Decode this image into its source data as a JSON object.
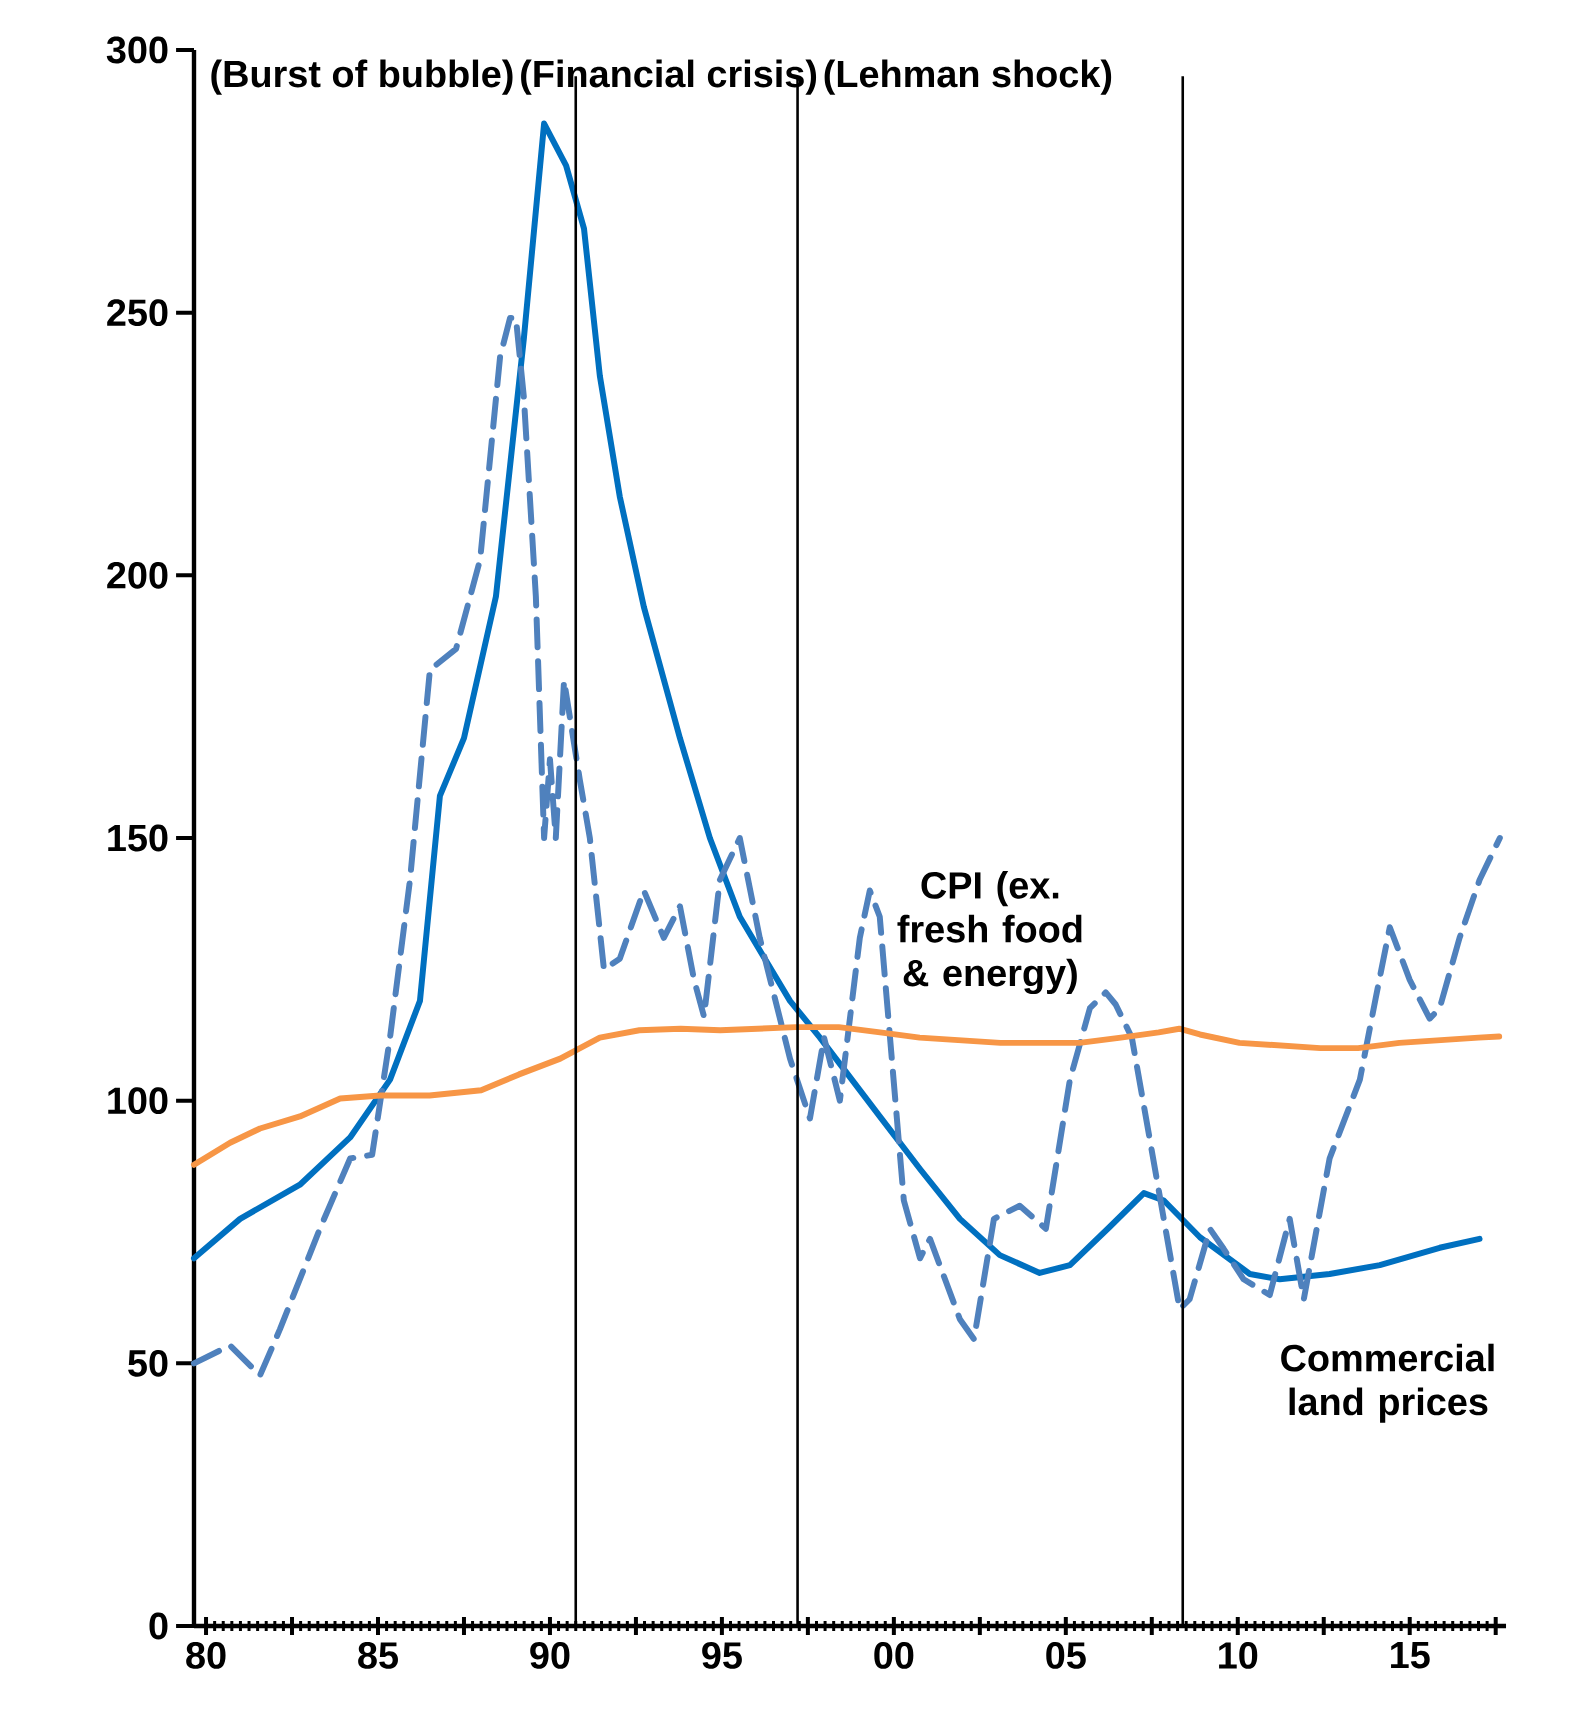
{
  "chart_data": {
    "type": "line",
    "ylim": [
      0,
      300
    ],
    "yticks": [
      0,
      50,
      100,
      150,
      200,
      250,
      300
    ],
    "xlim": [
      1979.65,
      2017.8
    ],
    "xticks": [
      {
        "value": 1980,
        "label": "80"
      },
      {
        "value": 1982.5,
        "label": null
      },
      {
        "value": 1985,
        "label": "85"
      },
      {
        "value": 1987.5,
        "label": null
      },
      {
        "value": 1990,
        "label": "90"
      },
      {
        "value": 1992.5,
        "label": null
      },
      {
        "value": 1995,
        "label": "95"
      },
      {
        "value": 1997.5,
        "label": null
      },
      {
        "value": 2000,
        "label": "00"
      },
      {
        "value": 2002.5,
        "label": null
      },
      {
        "value": 2005,
        "label": "05"
      },
      {
        "value": 2007.5,
        "label": null
      },
      {
        "value": 2010,
        "label": "10"
      },
      {
        "value": 2012.5,
        "label": null
      },
      {
        "value": 2015,
        "label": "15"
      },
      {
        "value": 2017.5,
        "label": null
      }
    ],
    "series": [
      {
        "name": "Commercial land prices",
        "color": "#0070c0",
        "line_style": "solid",
        "x": [
          1979.65,
          1980.99,
          1982.73,
          1984.19,
          1985.35,
          1986.22,
          1986.8,
          1987.5,
          1988.43,
          1989.24,
          1989.83,
          1990.47,
          1990.99,
          1991.45,
          1992.03,
          1992.73,
          1993.78,
          1994.65,
          1995.52,
          1996.98,
          1997.85,
          1999.59,
          2000.76,
          2001.92,
          2003.08,
          2004.24,
          2005.12,
          2006.28,
          2007.27,
          2007.85,
          2008.9,
          2010.35,
          2011.22,
          2012.67,
          2014.13,
          2015.87,
          2017.03
        ],
        "values": [
          70,
          77.5,
          84,
          93,
          104,
          119,
          158,
          169,
          196,
          245,
          286,
          278,
          266,
          238,
          215,
          194,
          169,
          150,
          135,
          119,
          112,
          97,
          87,
          77.5,
          70.6,
          67.2,
          68.7,
          76,
          82.4,
          81,
          74,
          67,
          66,
          67,
          68.7,
          72,
          73.7
        ]
      },
      {
        "color": "#4f81bd",
        "line_style": "dashed",
        "x": [
          1979.65,
          1980.7,
          1981.57,
          1982.15,
          1983.31,
          1984.19,
          1984.83,
          1985.35,
          1985.93,
          1986.51,
          1987.27,
          1987.97,
          1988.55,
          1988.84,
          1989.01,
          1989.24,
          1989.59,
          1989.83,
          1990,
          1990.17,
          1990.41,
          1990.87,
          1991.16,
          1991.57,
          1992.03,
          1992.73,
          1993.31,
          1993.78,
          1994.19,
          1994.48,
          1994.94,
          1995.52,
          1996.1,
          1996.98,
          1997.56,
          1997.97,
          1998.43,
          1999.01,
          1999.3,
          1999.59,
          2000.29,
          2000.76,
          2001.05,
          2001.92,
          2002.33,
          2002.91,
          2003.66,
          2004.42,
          2005.12,
          2005.7,
          2006.16,
          2006.45,
          2006.92,
          2007.44,
          2008.31,
          2008.6,
          2009.19,
          2009.59,
          2010.17,
          2010.93,
          2011.51,
          2011.92,
          2012.67,
          2013.55,
          2014.01,
          2014.42,
          2015,
          2015.58,
          2015.87,
          2016.45,
          2017.03,
          2017.62
        ],
        "values": [
          50,
          53.4,
          47.7,
          56.5,
          75.6,
          89,
          89.7,
          112,
          142,
          182,
          186,
          203,
          241.6,
          249,
          249,
          234,
          196,
          150,
          165,
          150,
          180,
          161,
          150,
          125,
          127,
          140,
          131,
          137,
          123,
          116,
          142,
          150,
          131,
          108,
          96.6,
          112,
          100,
          131,
          140,
          135,
          81,
          70,
          73.7,
          58.4,
          54.6,
          77.5,
          80,
          75.6,
          104,
          117.6,
          120.6,
          118.3,
          112,
          92.7,
          60.3,
          62.2,
          75.6,
          71.8,
          66,
          63,
          77.5,
          62.2,
          89,
          104,
          119.5,
          133,
          123,
          115.6,
          117.6,
          131,
          142,
          150
        ]
      },
      {
        "name": "CPI (ex. fresh food & energy)",
        "color": "#f79646",
        "line_style": "solid",
        "x": [
          1979.65,
          1980.7,
          1981.57,
          1982.73,
          1983.9,
          1985.06,
          1986.5,
          1988,
          1989.1,
          1990.3,
          1991.45,
          1992.6,
          1993.8,
          1994.95,
          1997.15,
          1998.4,
          1999.6,
          2000.75,
          2003.1,
          2005.4,
          2006.6,
          2007.7,
          2008.3,
          2008.9,
          2010.05,
          2012.4,
          2013.5,
          2014.7,
          2017,
          2017.6
        ],
        "values": [
          87.8,
          92,
          94.7,
          97,
          100.4,
          101,
          101,
          102,
          105,
          108,
          112,
          113.4,
          113.7,
          113.4,
          114,
          114,
          113,
          112,
          111,
          111,
          112,
          113,
          113.7,
          112.6,
          111,
          110,
          110,
          111,
          112,
          112.2
        ]
      }
    ],
    "ref_lines": [
      {
        "axis": "x",
        "value": 1990.75,
        "label": "(Burst of bubble)"
      },
      {
        "axis": "x",
        "value": 1997.2,
        "label": "(Financial crisis)"
      },
      {
        "axis": "x",
        "value": 2008.4,
        "label": "(Lehman shock)"
      }
    ]
  }
}
